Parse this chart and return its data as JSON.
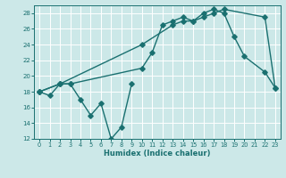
{
  "xlabel": "Humidex (Indice chaleur)",
  "background_color": "#cce8e8",
  "grid_color": "#ffffff",
  "line_color": "#1a7070",
  "xlim": [
    -0.5,
    23.5
  ],
  "ylim": [
    12,
    29
  ],
  "xticks": [
    0,
    1,
    2,
    3,
    4,
    5,
    6,
    7,
    8,
    9,
    10,
    11,
    12,
    13,
    14,
    15,
    16,
    17,
    18,
    19,
    20,
    21,
    22,
    23
  ],
  "yticks": [
    12,
    14,
    16,
    18,
    20,
    22,
    24,
    26,
    28
  ],
  "line1_x": [
    0,
    1,
    2,
    3,
    4,
    5,
    6,
    7,
    8,
    9
  ],
  "line1_y": [
    18,
    17.5,
    19,
    19,
    17,
    15,
    16.5,
    12,
    13.5,
    19
  ],
  "line2_x": [
    0,
    2,
    3,
    10,
    11,
    12,
    13,
    14,
    15,
    16,
    17,
    18,
    19,
    20,
    22,
    23
  ],
  "line2_y": [
    18,
    19,
    19,
    21,
    23,
    26.5,
    27,
    27.5,
    27,
    28,
    28.5,
    28,
    25,
    22.5,
    20.5,
    18.5
  ],
  "line3_x": [
    0,
    2,
    10,
    13,
    14,
    15,
    16,
    17,
    18,
    22,
    23
  ],
  "line3_y": [
    18,
    19,
    24,
    26.5,
    27,
    27,
    27.5,
    28,
    28.5,
    27.5,
    18.5
  ]
}
